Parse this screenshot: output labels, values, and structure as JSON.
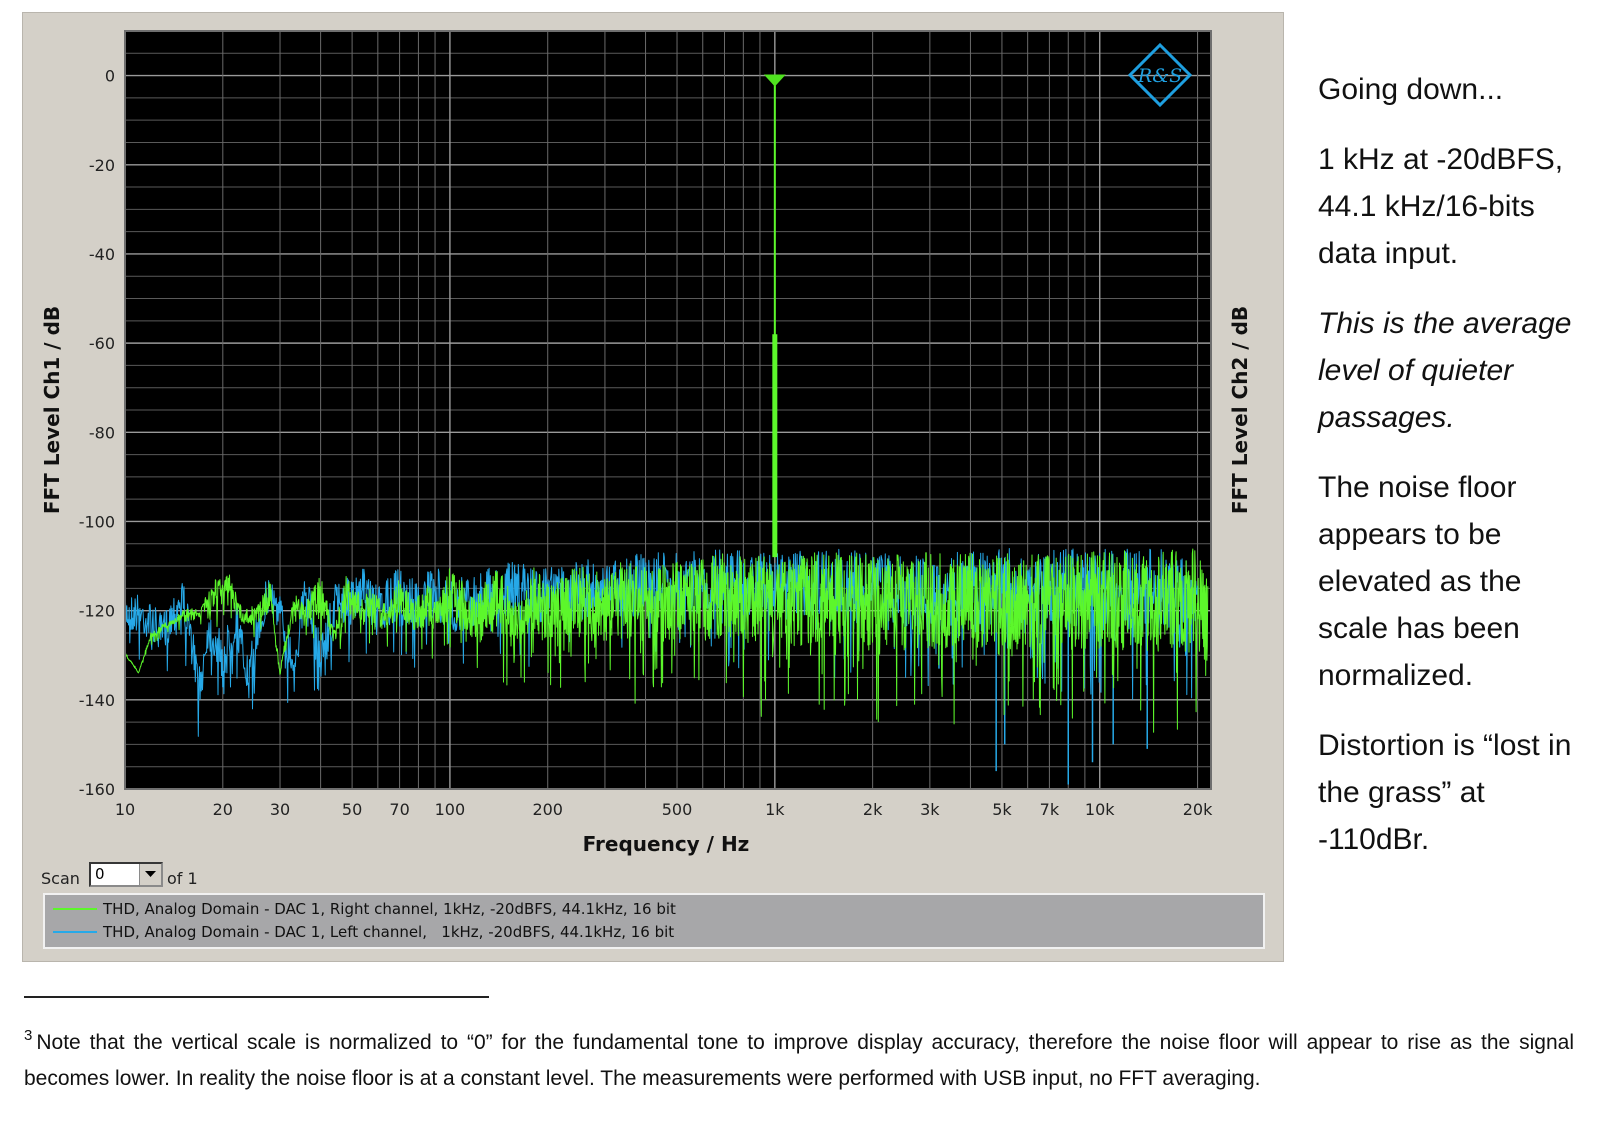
{
  "chart_data": {
    "type": "line",
    "xlabel": "Frequency / Hz",
    "ylabel_left": "FFT Level Ch1 / dB",
    "ylabel_right": "FFT Level Ch2 / dB",
    "x_scale": "log",
    "xlim": [
      10,
      22000
    ],
    "ylim": [
      -160,
      10
    ],
    "grid": true,
    "x_ticks": [
      10,
      20,
      30,
      50,
      70,
      100,
      200,
      500,
      1000,
      2000,
      3000,
      5000,
      7000,
      10000,
      20000
    ],
    "x_tick_labels": [
      "10",
      "20",
      "30",
      "50",
      "70",
      "100",
      "200",
      "500",
      "1k",
      "2k",
      "3k",
      "5k",
      "7k",
      "10k",
      "20k"
    ],
    "y_ticks": [
      0,
      -20,
      -40,
      -60,
      -80,
      -100,
      -120,
      -140,
      -160
    ],
    "y_tick_labels": [
      "0",
      "-20",
      "-40",
      "-60",
      "-80",
      "-100",
      "-120",
      "-140",
      "-160"
    ],
    "fundamental_marker": {
      "x": 1000,
      "y": -2
    },
    "series": [
      {
        "name": "THD, Analog Domain - DAC 1, Right channel, 1kHz, -20dBFS, 44.1kHz, 16 bit",
        "color": "#5cf72b",
        "x": [
          10,
          11,
          12,
          13,
          14,
          15,
          17,
          19,
          21,
          23,
          26,
          28,
          30,
          33,
          36,
          40,
          44,
          48,
          53,
          58,
          64,
          70,
          77,
          85,
          93,
          100,
          120,
          140,
          160,
          180,
          200,
          250,
          300,
          350,
          400,
          500,
          600,
          700,
          800,
          900,
          980,
          1000,
          1020,
          1200,
          1500,
          2000,
          2500,
          3000,
          4000,
          5000,
          6000,
          7000,
          8000,
          10000,
          12000,
          14000,
          16000,
          18000,
          20000,
          21500
        ],
        "y": [
          -130,
          -134,
          -125,
          -123,
          -122,
          -120,
          -119,
          -113,
          -112,
          -120,
          -118,
          -113,
          -133,
          -116,
          -118,
          -112,
          -124,
          -112,
          -116,
          -115,
          -119,
          -112,
          -118,
          -114,
          -116,
          -110,
          -116,
          -109,
          -118,
          -110,
          -114,
          -109,
          -112,
          -108,
          -110,
          -109,
          -108,
          -107,
          -108,
          -107,
          -108,
          -2,
          -108,
          -107,
          -107,
          -107,
          -107,
          -107,
          -107,
          -107,
          -107,
          -106,
          -107,
          -106,
          -106,
          -106,
          -106,
          -106,
          -106,
          -112
        ],
        "floor_min_db": [
          -128,
          -134,
          -128,
          -126,
          -124,
          -125,
          -124,
          -124,
          -124,
          -126,
          -126,
          -126,
          -136,
          -126,
          -127,
          -127,
          -130,
          -128,
          -129,
          -128,
          -130,
          -129,
          -131,
          -131,
          -132,
          -132,
          -136,
          -137,
          -137,
          -138,
          -138,
          -140,
          -140,
          -141,
          -141,
          -142,
          -143,
          -143,
          -143,
          -144,
          -144,
          -144,
          -144,
          -145,
          -145,
          -145,
          -146,
          -146,
          -146,
          -146,
          -147,
          -147,
          -147,
          -147,
          -147,
          -148,
          -148,
          -148,
          -149,
          -149
        ]
      },
      {
        "name": "THD, Analog Domain - DAC 1, Left channel,   1kHz, -20dBFS, 44.1kHz, 16 bit",
        "color": "#26a9e8",
        "x": [
          10,
          11,
          12,
          13,
          14,
          15,
          16,
          17,
          18,
          19,
          20,
          22,
          24,
          26,
          28,
          30,
          33,
          36,
          40,
          45,
          50,
          55,
          60,
          70,
          80,
          90,
          100,
          150,
          200,
          300,
          400,
          500,
          700,
          1000,
          1500,
          2000,
          3000,
          5000,
          7000,
          10000,
          15000,
          20000
        ],
        "y": [
          -116,
          -116,
          -118,
          -121,
          -116,
          -112,
          -122,
          -133,
          -119,
          -122,
          -126,
          -117,
          -131,
          -117,
          -110,
          -116,
          -126,
          -111,
          -125,
          -112,
          -113,
          -110,
          -115,
          -110,
          -113,
          -110,
          -113,
          -109,
          -110,
          -108,
          -107,
          -107,
          -106,
          -107,
          -106,
          -107,
          -107,
          -106,
          -106,
          -106,
          -106,
          -107
        ],
        "min_dips_db": [
          -133,
          -156,
          -150,
          -159,
          -154,
          -150,
          -151
        ]
      }
    ]
  },
  "scan": {
    "label": "Scan",
    "value": "0",
    "of_label": "of 1"
  },
  "logo": {
    "name": "rohde-schwarz-logo",
    "text": "R&S"
  },
  "commentary": {
    "p1": "Going down...",
    "p2": "1 kHz at -20dBFS, 44.1 kHz/16-bits data input.",
    "p3": "This is the average level of quieter passages.",
    "p4": "The noise floor appears to be elevated as the scale has been normalized.",
    "p5": "Distortion is “lost in the grass” at -110dBr."
  },
  "footnote": {
    "number": "3",
    "text": "Note that the vertical scale is normalized to “0” for the fundamental tone to improve display accuracy, therefore the noise floor will appear to rise as the signal becomes lower. In reality the noise floor is at a constant level. The measurements were performed with USB input, no FFT averaging."
  }
}
